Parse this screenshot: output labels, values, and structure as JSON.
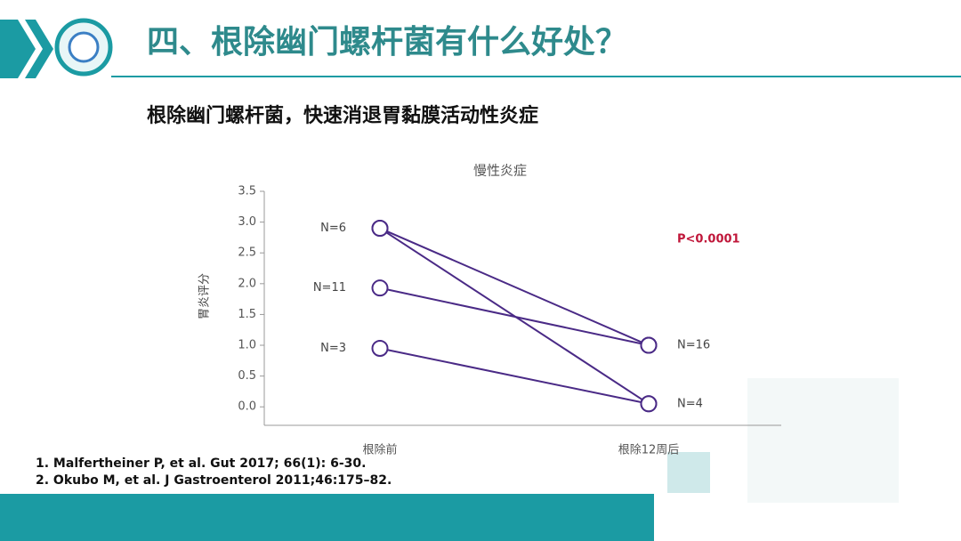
{
  "header": {
    "title": "四、根除幽门螺杆菌有什么好处？"
  },
  "subtitle": "根除幽门螺杆菌，快速消退胃黏膜活动性炎症",
  "references": [
    "1. Malfertheiner P, et al. Gut 2017; 66(1): 6-30.",
    "2. Okubo M, et al. J Gastroenterol 2011;46:175–82."
  ],
  "chart_data": {
    "type": "line",
    "title": "慢性炎症",
    "y_label": "胃炎评分",
    "categories": [
      "根除前",
      "根除12周后"
    ],
    "series": [
      {
        "color": "#4a2a86",
        "values": [
          2.9,
          1.0
        ]
      },
      {
        "color": "#4a2a86",
        "values": [
          2.9,
          0.05
        ]
      },
      {
        "color": "#4a2a86",
        "values": [
          1.93,
          1.0
        ]
      },
      {
        "color": "#4a2a86",
        "values": [
          0.95,
          0.05
        ]
      }
    ],
    "ylim": [
      -0.3,
      3.5
    ],
    "yticks": [
      {
        "value": 0,
        "label": "0.0"
      },
      0.5,
      {
        "value": 1,
        "label": "1.0"
      },
      1.5,
      {
        "value": 2,
        "label": "2.0"
      },
      2.5,
      {
        "value": 3,
        "label": "3.0"
      },
      3.5
    ],
    "point_annotations": [
      {
        "text": "N=6",
        "series": 0,
        "index": 0
      },
      {
        "text": "N=11",
        "series": 2,
        "index": 0
      },
      {
        "text": "N=3",
        "series": 3,
        "index": 0
      },
      {
        "text": "N=16",
        "series": 0,
        "index": 1
      },
      {
        "text": "N=4",
        "series": 1,
        "index": 1
      }
    ],
    "annotations": [
      {
        "text": "P<0.0001",
        "color": "#c0173a"
      }
    ]
  }
}
